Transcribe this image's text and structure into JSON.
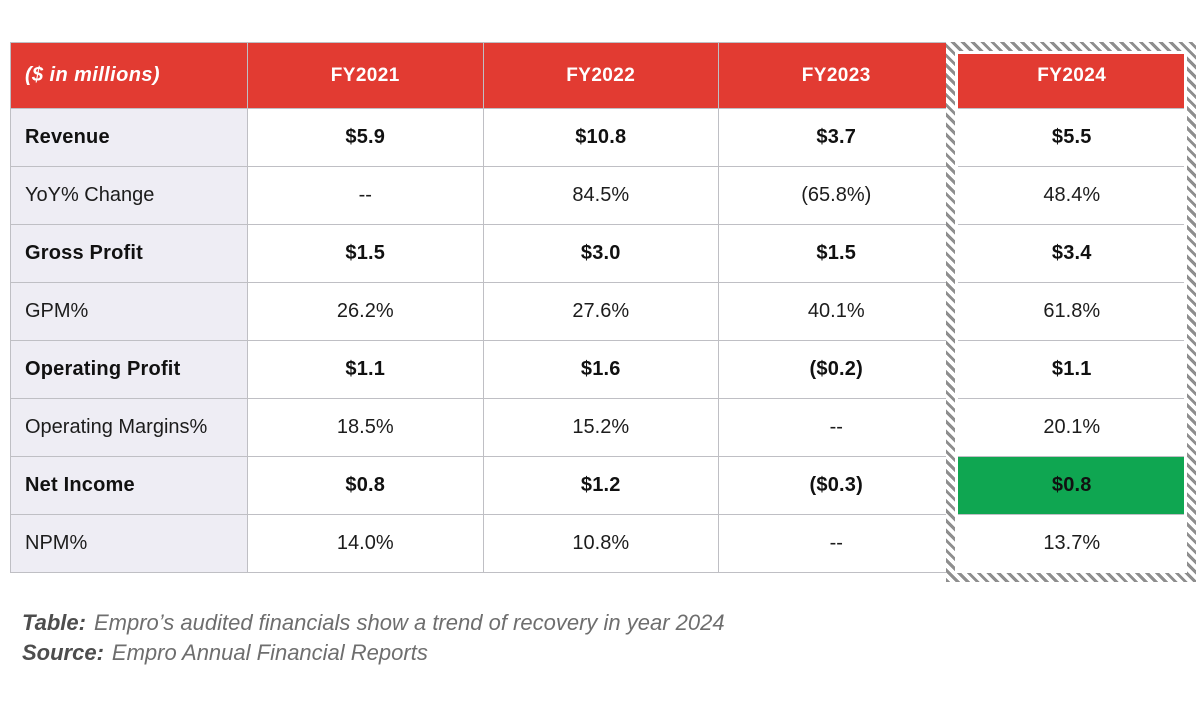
{
  "chart_data": {
    "type": "table",
    "title": "Empro’s audited financials show a trend of recovery in year 2024",
    "source": "Empro Annual Financial Reports",
    "unit_label": "($ in millions)",
    "columns": [
      "FY2021",
      "FY2022",
      "FY2023",
      "FY2024"
    ],
    "rows": [
      {
        "label": "Revenue",
        "bold": true,
        "values": [
          "$5.9",
          "$10.8",
          "$3.7",
          "$5.5"
        ]
      },
      {
        "label": "YoY% Change",
        "bold": false,
        "values": [
          "--",
          "84.5%",
          "(65.8%)",
          "48.4%"
        ]
      },
      {
        "label": "Gross Profit",
        "bold": true,
        "values": [
          "$1.5",
          "$3.0",
          "$1.5",
          "$3.4"
        ]
      },
      {
        "label": "GPM%",
        "bold": false,
        "values": [
          "26.2%",
          "27.6%",
          "40.1%",
          "61.8%"
        ]
      },
      {
        "label": "Operating Profit",
        "bold": true,
        "values": [
          "$1.1",
          "$1.6",
          "($0.2)",
          "$1.1"
        ]
      },
      {
        "label": "Operating Margins%",
        "bold": false,
        "values": [
          "18.5%",
          "15.2%",
          "--",
          "20.1%"
        ]
      },
      {
        "label": "Net Income",
        "bold": true,
        "values": [
          "$0.8",
          "$1.2",
          "($0.3)",
          "$0.8"
        ]
      },
      {
        "label": "NPM%",
        "bold": false,
        "values": [
          "14.0%",
          "10.8%",
          "--",
          "13.7%"
        ]
      }
    ],
    "highlighted_column": "FY2024",
    "highlighted_cell": {
      "row": "Net Income",
      "column": "FY2024",
      "color": "#0FA651"
    }
  },
  "caption": {
    "table_label": "Table:",
    "table_text": "Empro’s audited financials show a trend of recovery in year 2024",
    "source_label": "Source:",
    "source_text": "Empro Annual Financial Reports"
  },
  "colors": {
    "header_bg": "#E23B32",
    "header_text": "#FFFFFF",
    "label_column_bg": "#EEEDF4",
    "highlight_cell_bg": "#0FA651",
    "grid_line": "#BFBFC4",
    "hatch_border": "#8E8E8E",
    "caption_text": "#6E6E6E"
  }
}
